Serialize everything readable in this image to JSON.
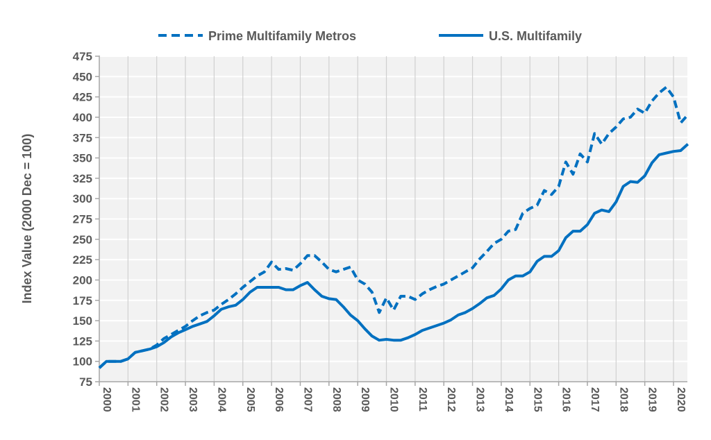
{
  "chart_data": {
    "type": "line",
    "title": "",
    "xlabel": "",
    "ylabel": "Index Value (2000 Dec = 100)",
    "ylim": [
      75,
      475
    ],
    "yticks": [
      75,
      100,
      125,
      150,
      175,
      200,
      225,
      250,
      275,
      300,
      325,
      350,
      375,
      400,
      425,
      450,
      475
    ],
    "xlim": [
      2000,
      2020.5
    ],
    "xticks": [
      "2000",
      "2001",
      "2002",
      "2003",
      "2004",
      "2005",
      "2006",
      "2007",
      "2008",
      "2009",
      "2010",
      "2011",
      "2012",
      "2013",
      "2014",
      "2015",
      "2016",
      "2017",
      "2018",
      "2019",
      "2020"
    ],
    "grid": true,
    "legend_position": "top",
    "x_start": 2000,
    "x_step": 0.25,
    "colors": {
      "series": "#0070C0",
      "plot_bg": "#F2F2F2",
      "vgrid": "#D0D0D0",
      "hgrid": "#FFFFFF",
      "axis": "#A6A6A6"
    },
    "series": [
      {
        "name": "Prime Multifamily Metros",
        "style": "dashed",
        "values": [
          92,
          100,
          100,
          100,
          103,
          111,
          113,
          115,
          120,
          128,
          133,
          138,
          143,
          150,
          156,
          160,
          163,
          170,
          176,
          183,
          191,
          198,
          205,
          210,
          222,
          213,
          214,
          212,
          220,
          230,
          230,
          222,
          213,
          210,
          213,
          216,
          200,
          195,
          185,
          160,
          178,
          163,
          180,
          180,
          176,
          183,
          188,
          192,
          195,
          200,
          205,
          210,
          215,
          226,
          235,
          245,
          250,
          260,
          262,
          282,
          288,
          292,
          310,
          305,
          315,
          345,
          330,
          355,
          345,
          380,
          367,
          380,
          388,
          398,
          400,
          410,
          405,
          420,
          430,
          437,
          425,
          393,
          403
        ]
      },
      {
        "name": "U.S. Multifamily",
        "style": "solid",
        "values": [
          92,
          100,
          100,
          100,
          103,
          111,
          113,
          115,
          118,
          123,
          130,
          135,
          139,
          143,
          146,
          149,
          156,
          164,
          167,
          169,
          176,
          185,
          191,
          191,
          191,
          191,
          188,
          188,
          193,
          197,
          188,
          180,
          177,
          176,
          167,
          157,
          150,
          140,
          131,
          126,
          127,
          126,
          126,
          129,
          133,
          138,
          141,
          144,
          147,
          151,
          157,
          160,
          165,
          171,
          178,
          181,
          189,
          200,
          205,
          205,
          210,
          223,
          229,
          229,
          236,
          252,
          260,
          260,
          268,
          282,
          286,
          284,
          296,
          315,
          321,
          320,
          328,
          344,
          354,
          356,
          358,
          359,
          367
        ]
      }
    ]
  }
}
